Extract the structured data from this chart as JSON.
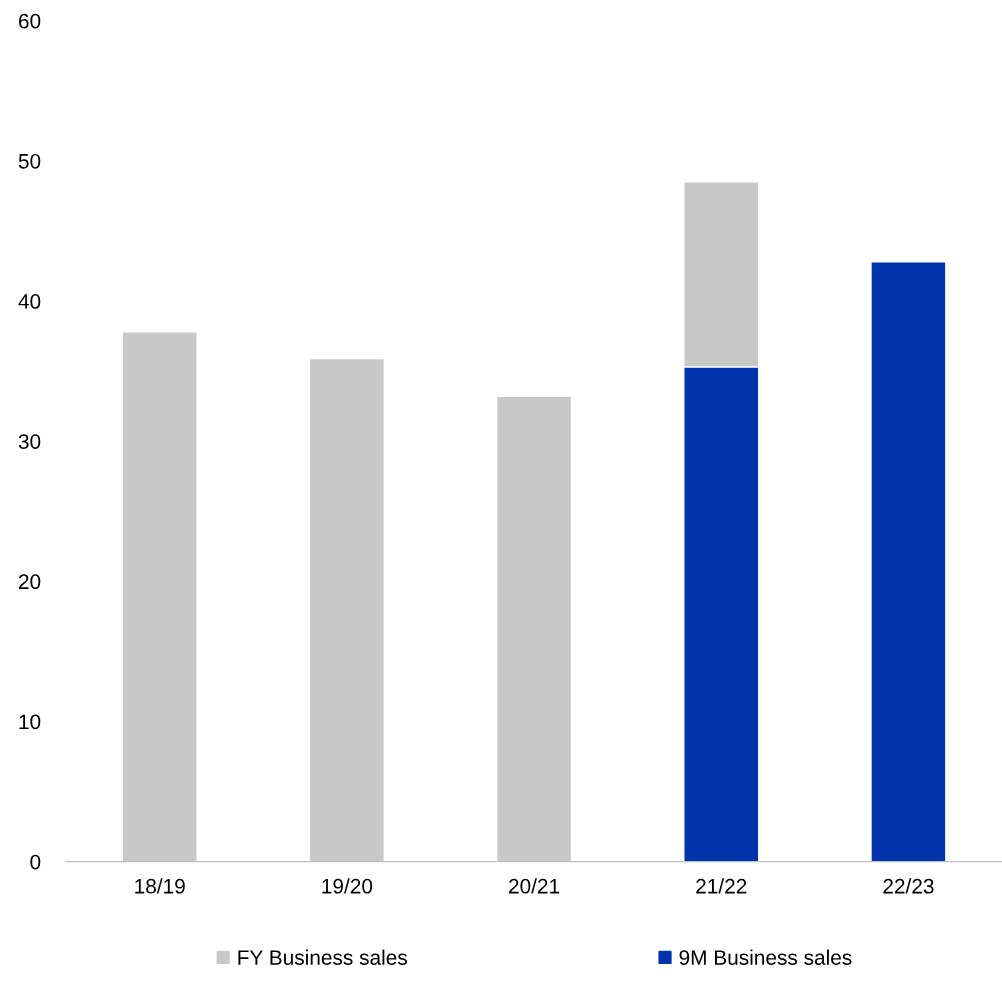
{
  "chart_data": {
    "type": "bar",
    "stacked": true,
    "categories": [
      "18/19",
      "19/20",
      "20/21",
      "21/22",
      "22/23"
    ],
    "series": [
      {
        "name": "9M Business sales",
        "color": "#0033ad",
        "values": [
          null,
          null,
          null,
          35.3,
          42.8
        ]
      },
      {
        "name": "FY Business sales",
        "color": "#c8c8c8",
        "values": [
          37.8,
          35.9,
          33.2,
          13.2,
          null
        ]
      }
    ],
    "ylim": [
      0,
      60
    ],
    "yticks": [
      0,
      10,
      20,
      30,
      40,
      50,
      60
    ],
    "grid": false,
    "legend": "bottom"
  }
}
